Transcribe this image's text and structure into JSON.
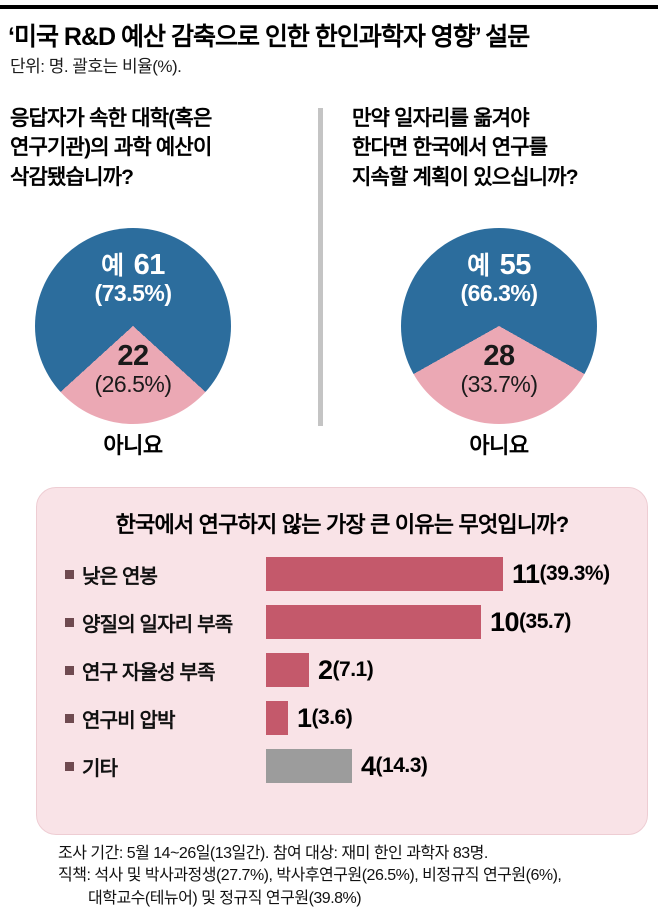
{
  "header": {
    "title": "‘미국 R&D 예산 감축으로 인한 한인과학자 영향’ 설문",
    "subtitle": "단위: 명. 괄호는 비율(%)."
  },
  "pies": [
    {
      "question": "응답자가 속한 대학(혹은\n연구기관)의 과학 예산이\n삭감됐습니까?",
      "yes_label": "예",
      "yes_value": "61",
      "yes_pct": "(73.5%)",
      "no_value": "22",
      "no_pct": "(26.5%)",
      "no_label": "아니요"
    },
    {
      "question": "만약 일자리를 옮겨야\n한다면 한국에서 연구를\n지속할 계획이 있으십니까?",
      "yes_label": "예",
      "yes_value": "55",
      "yes_pct": "(66.3%)",
      "no_value": "28",
      "no_pct": "(33.7%)",
      "no_label": "아니요"
    }
  ],
  "reasons": {
    "title": "한국에서 연구하지 않는 가장 큰 이유는 무엇입니까?",
    "bars": [
      {
        "label": "낮은 연봉",
        "value_text": "11",
        "pct": "(39.3%)",
        "color": "#c4596b"
      },
      {
        "label": "양질의 일자리 부족",
        "value_text": "10",
        "pct": "(35.7)",
        "color": "#c4596b"
      },
      {
        "label": "연구 자율성 부족",
        "value_text": "2",
        "pct": "(7.1)",
        "color": "#c4596b"
      },
      {
        "label": "연구비 압박",
        "value_text": "1",
        "pct": "(3.6)",
        "color": "#c4596b"
      },
      {
        "label": "기타",
        "value_text": "4",
        "pct": "(14.3)",
        "color": "#9c9c9c"
      }
    ]
  },
  "footer": {
    "line1": "조사 기간: 5월 14~26일(13일간). 참여 대상: 재미 한인 과학자 83명.",
    "line2": "직책: 석사 및 박사과정생(27.7%), 박사후연구원(26.5%), 비정규직 연구원(6%),",
    "line3": "대학교수(테뉴어) 및 정규직 연구원(39.8%)"
  },
  "colors": {
    "pie_yes_blue": "#2c6d9d",
    "pie_no_pink": "#eba8b4",
    "bar_rose": "#c4596b",
    "bar_gray": "#9c9c9c",
    "box_pink": "#f9e3e7",
    "bullet_maroon": "#6f4a50",
    "divider_gray": "#c4c4c4",
    "top_rule_black": "#000000"
  },
  "chart_data": [
    {
      "type": "pie",
      "title": "응답자가 속한 대학(혹은 연구기관)의 과학 예산이 삭감됐습니까?",
      "labels": [
        "예",
        "아니요"
      ],
      "values": [
        61,
        22
      ],
      "percents": [
        73.5,
        26.5
      ],
      "unit": "명"
    },
    {
      "type": "pie",
      "title": "만약 일자리를 옮겨야 한다면 한국에서 연구를 지속할 계획이 있으십니까?",
      "labels": [
        "예",
        "아니요"
      ],
      "values": [
        55,
        28
      ],
      "percents": [
        66.3,
        33.7
      ],
      "unit": "명"
    },
    {
      "type": "bar",
      "orientation": "horizontal",
      "title": "한국에서 연구하지 않는 가장 큰 이유는 무엇입니까?",
      "categories": [
        "낮은 연봉",
        "양질의 일자리 부족",
        "연구 자율성 부족",
        "연구비 압박",
        "기타"
      ],
      "values": [
        11,
        10,
        2,
        1,
        4
      ],
      "percents": [
        39.3,
        35.7,
        7.1,
        3.6,
        14.3
      ],
      "unit": "명"
    }
  ]
}
